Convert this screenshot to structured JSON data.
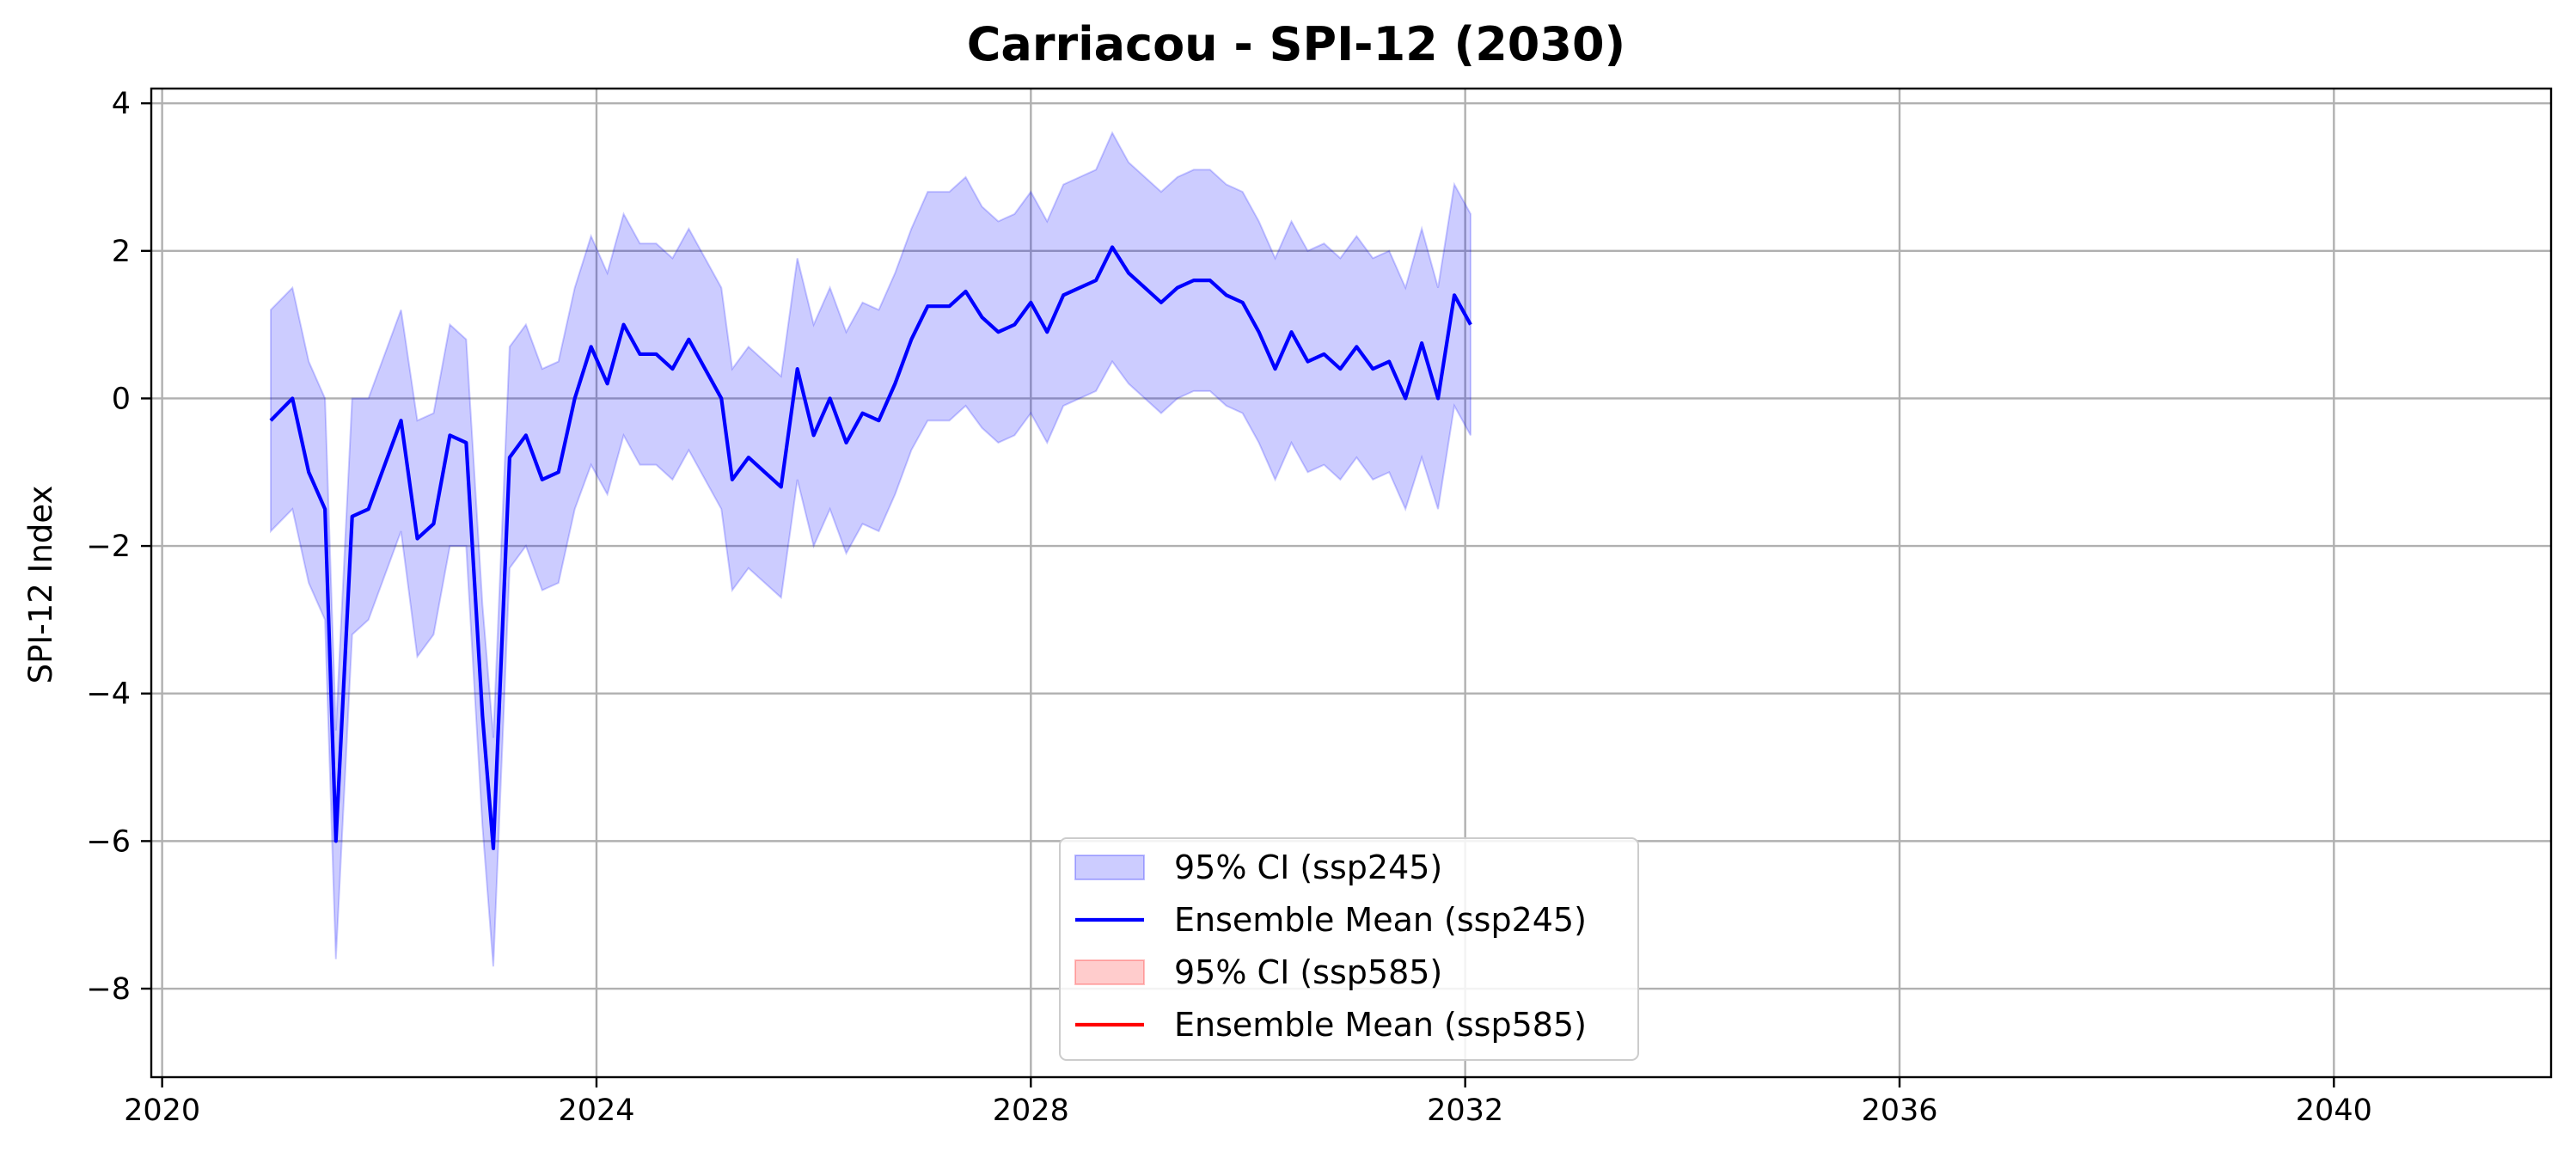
{
  "chart_data": {
    "type": "line",
    "title": "Carriacou - SPI-12 (2030)",
    "xlabel": "",
    "ylabel": "SPI-12 Index",
    "xlim": [
      2019.9,
      2042.0
    ],
    "ylim": [
      -9.2,
      4.2
    ],
    "x_ticks": [
      2020,
      2024,
      2028,
      2032,
      2036,
      2040
    ],
    "x_tick_labels": [
      "2020",
      "2024",
      "2028",
      "2032",
      "2036",
      "2040"
    ],
    "y_ticks": [
      4,
      2,
      0,
      -2,
      -4,
      -6,
      -8
    ],
    "y_tick_labels": [
      "4",
      "2",
      "0",
      "−2",
      "−4",
      "−6",
      "−8"
    ],
    "grid": true,
    "legend_position": "lower center",
    "legend": [
      {
        "label": "95% CI (ssp245)",
        "kind": "band",
        "color": "#0000ff"
      },
      {
        "label": "Ensemble Mean (ssp245)",
        "kind": "line",
        "color": "#0000ff"
      },
      {
        "label": "95% CI (ssp585)",
        "kind": "band",
        "color": "#ff0000"
      },
      {
        "label": "Ensemble Mean (ssp585)",
        "kind": "line",
        "color": "#ff0000"
      }
    ],
    "series": [
      {
        "name": "Ensemble Mean (ssp245)",
        "color": "#0000ff",
        "band_opacity": 0.2,
        "points": [
          [
            2021.0,
            -0.3,
            -1.8,
            1.2
          ],
          [
            2021.2,
            0.0,
            -1.5,
            1.5
          ],
          [
            2021.35,
            -1.0,
            -2.5,
            0.5
          ],
          [
            2021.5,
            -1.5,
            -3.0,
            0.0
          ],
          [
            2021.6,
            -6.0,
            -7.6,
            -4.5
          ],
          [
            2021.75,
            -1.6,
            -3.2,
            0.0
          ],
          [
            2021.9,
            -1.5,
            -3.0,
            0.0
          ],
          [
            2022.05,
            -0.9,
            -2.4,
            0.6
          ],
          [
            2022.2,
            -0.3,
            -1.8,
            1.2
          ],
          [
            2022.35,
            -1.9,
            -3.5,
            -0.3
          ],
          [
            2022.5,
            -1.7,
            -3.2,
            -0.2
          ],
          [
            2022.65,
            -0.5,
            -2.0,
            1.0
          ],
          [
            2022.8,
            -0.6,
            -2.0,
            0.8
          ],
          [
            2022.95,
            -4.3,
            -5.8,
            -2.8
          ],
          [
            2023.05,
            -6.1,
            -7.7,
            -4.6
          ],
          [
            2023.2,
            -0.8,
            -2.3,
            0.7
          ],
          [
            2023.35,
            -0.5,
            -2.0,
            1.0
          ],
          [
            2023.5,
            -1.1,
            -2.6,
            0.4
          ],
          [
            2023.65,
            -1.0,
            -2.5,
            0.5
          ],
          [
            2023.8,
            0.0,
            -1.5,
            1.5
          ],
          [
            2023.95,
            0.7,
            -0.9,
            2.2
          ],
          [
            2024.1,
            0.2,
            -1.3,
            1.7
          ],
          [
            2024.25,
            1.0,
            -0.5,
            2.5
          ],
          [
            2024.4,
            0.6,
            -0.9,
            2.1
          ],
          [
            2024.55,
            0.6,
            -0.9,
            2.1
          ],
          [
            2024.7,
            0.4,
            -1.1,
            1.9
          ],
          [
            2024.85,
            0.8,
            -0.7,
            2.3
          ],
          [
            2025.0,
            0.4,
            -1.1,
            1.9
          ],
          [
            2025.15,
            0.0,
            -1.5,
            1.5
          ],
          [
            2025.25,
            -1.1,
            -2.6,
            0.4
          ],
          [
            2025.4,
            -0.8,
            -2.3,
            0.7
          ],
          [
            2025.55,
            -1.0,
            -2.5,
            0.5
          ],
          [
            2025.7,
            -1.2,
            -2.7,
            0.3
          ],
          [
            2025.85,
            0.4,
            -1.1,
            1.9
          ],
          [
            2026.0,
            -0.5,
            -2.0,
            1.0
          ],
          [
            2026.15,
            0.0,
            -1.5,
            1.5
          ],
          [
            2026.3,
            -0.6,
            -2.1,
            0.9
          ],
          [
            2026.45,
            -0.2,
            -1.7,
            1.3
          ],
          [
            2026.6,
            -0.3,
            -1.8,
            1.2
          ],
          [
            2026.75,
            0.2,
            -1.3,
            1.7
          ],
          [
            2026.9,
            0.8,
            -0.7,
            2.3
          ],
          [
            2027.05,
            1.25,
            -0.3,
            2.8
          ],
          [
            2027.25,
            1.25,
            -0.3,
            2.8
          ],
          [
            2027.4,
            1.45,
            -0.1,
            3.0
          ],
          [
            2027.55,
            1.1,
            -0.4,
            2.6
          ],
          [
            2027.7,
            0.9,
            -0.6,
            2.4
          ],
          [
            2027.85,
            1.0,
            -0.5,
            2.5
          ],
          [
            2028.0,
            1.3,
            -0.2,
            2.8
          ],
          [
            2028.15,
            0.9,
            -0.6,
            2.4
          ],
          [
            2028.3,
            1.4,
            -0.1,
            2.9
          ],
          [
            2028.45,
            1.5,
            0.0,
            3.0
          ],
          [
            2028.6,
            1.6,
            0.1,
            3.1
          ],
          [
            2028.75,
            2.05,
            0.5,
            3.6
          ],
          [
            2028.9,
            1.7,
            0.2,
            3.2
          ],
          [
            2029.05,
            1.5,
            0.0,
            3.0
          ],
          [
            2029.2,
            1.3,
            -0.2,
            2.8
          ],
          [
            2029.35,
            1.5,
            0.0,
            3.0
          ],
          [
            2029.5,
            1.6,
            0.1,
            3.1
          ],
          [
            2029.65,
            1.6,
            0.1,
            3.1
          ],
          [
            2029.8,
            1.4,
            -0.1,
            2.9
          ],
          [
            2029.95,
            1.3,
            -0.2,
            2.8
          ],
          [
            2030.1,
            0.9,
            -0.6,
            2.4
          ],
          [
            2030.25,
            0.4,
            -1.1,
            1.9
          ],
          [
            2030.4,
            0.9,
            -0.6,
            2.4
          ],
          [
            2030.55,
            0.5,
            -1.0,
            2.0
          ],
          [
            2030.7,
            0.6,
            -0.9,
            2.1
          ],
          [
            2030.85,
            0.4,
            -1.1,
            1.9
          ],
          [
            2031.0,
            0.7,
            -0.8,
            2.2
          ],
          [
            2031.15,
            0.4,
            -1.1,
            1.9
          ],
          [
            2031.3,
            0.5,
            -1.0,
            2.0
          ],
          [
            2031.45,
            0.0,
            -1.5,
            1.5
          ],
          [
            2031.6,
            0.75,
            -0.8,
            2.3
          ],
          [
            2031.75,
            0.0,
            -1.5,
            1.5
          ],
          [
            2031.9,
            1.4,
            -0.1,
            2.9
          ],
          [
            2032.05,
            1.0,
            -0.5,
            2.5
          ]
        ]
      }
    ]
  }
}
